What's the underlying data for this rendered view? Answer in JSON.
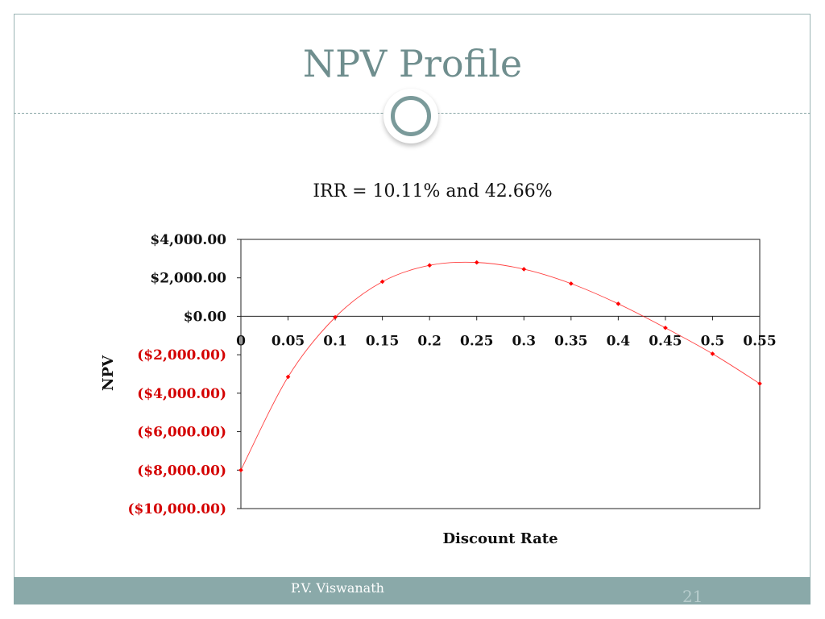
{
  "slide": {
    "title": "NPV Profile",
    "footer_author": "P.V. Viswanath",
    "page_number": "21",
    "colors": {
      "title": "#6f8e8e",
      "footer_bar": "#8aa9a9",
      "negative_label": "#d40000",
      "series": "#ff0000"
    }
  },
  "chart_data": {
    "type": "scatter",
    "title": "IRR = 10.11% and 42.66%",
    "xlabel": "Discount Rate",
    "ylabel": "NPV",
    "xlim": [
      0,
      0.55
    ],
    "ylim": [
      -10000,
      4000
    ],
    "x_ticks": [
      "0",
      "0.05",
      "0.1",
      "0.15",
      "0.2",
      "0.25",
      "0.3",
      "0.35",
      "0.4",
      "0.45",
      "0.5",
      "0.55"
    ],
    "y_ticks": [
      {
        "value": 4000,
        "label": "$4,000.00"
      },
      {
        "value": 2000,
        "label": "$2,000.00"
      },
      {
        "value": 0,
        "label": "$0.00"
      },
      {
        "value": -2000,
        "label": "($2,000.00)"
      },
      {
        "value": -4000,
        "label": "($4,000.00)"
      },
      {
        "value": -6000,
        "label": "($6,000.00)"
      },
      {
        "value": -8000,
        "label": "($8,000.00)"
      },
      {
        "value": -10000,
        "label": "($10,000.00)"
      }
    ],
    "grid": false,
    "smooth_line": true,
    "series": [
      {
        "x": [
          0,
          0.05,
          0.1,
          0.15,
          0.2,
          0.25,
          0.3,
          0.35,
          0.4,
          0.45,
          0.5,
          0.55
        ],
        "values": [
          -8000,
          -3150,
          -50,
          1800,
          2650,
          2800,
          2450,
          1700,
          650,
          -600,
          -1950,
          -3500
        ]
      }
    ]
  }
}
